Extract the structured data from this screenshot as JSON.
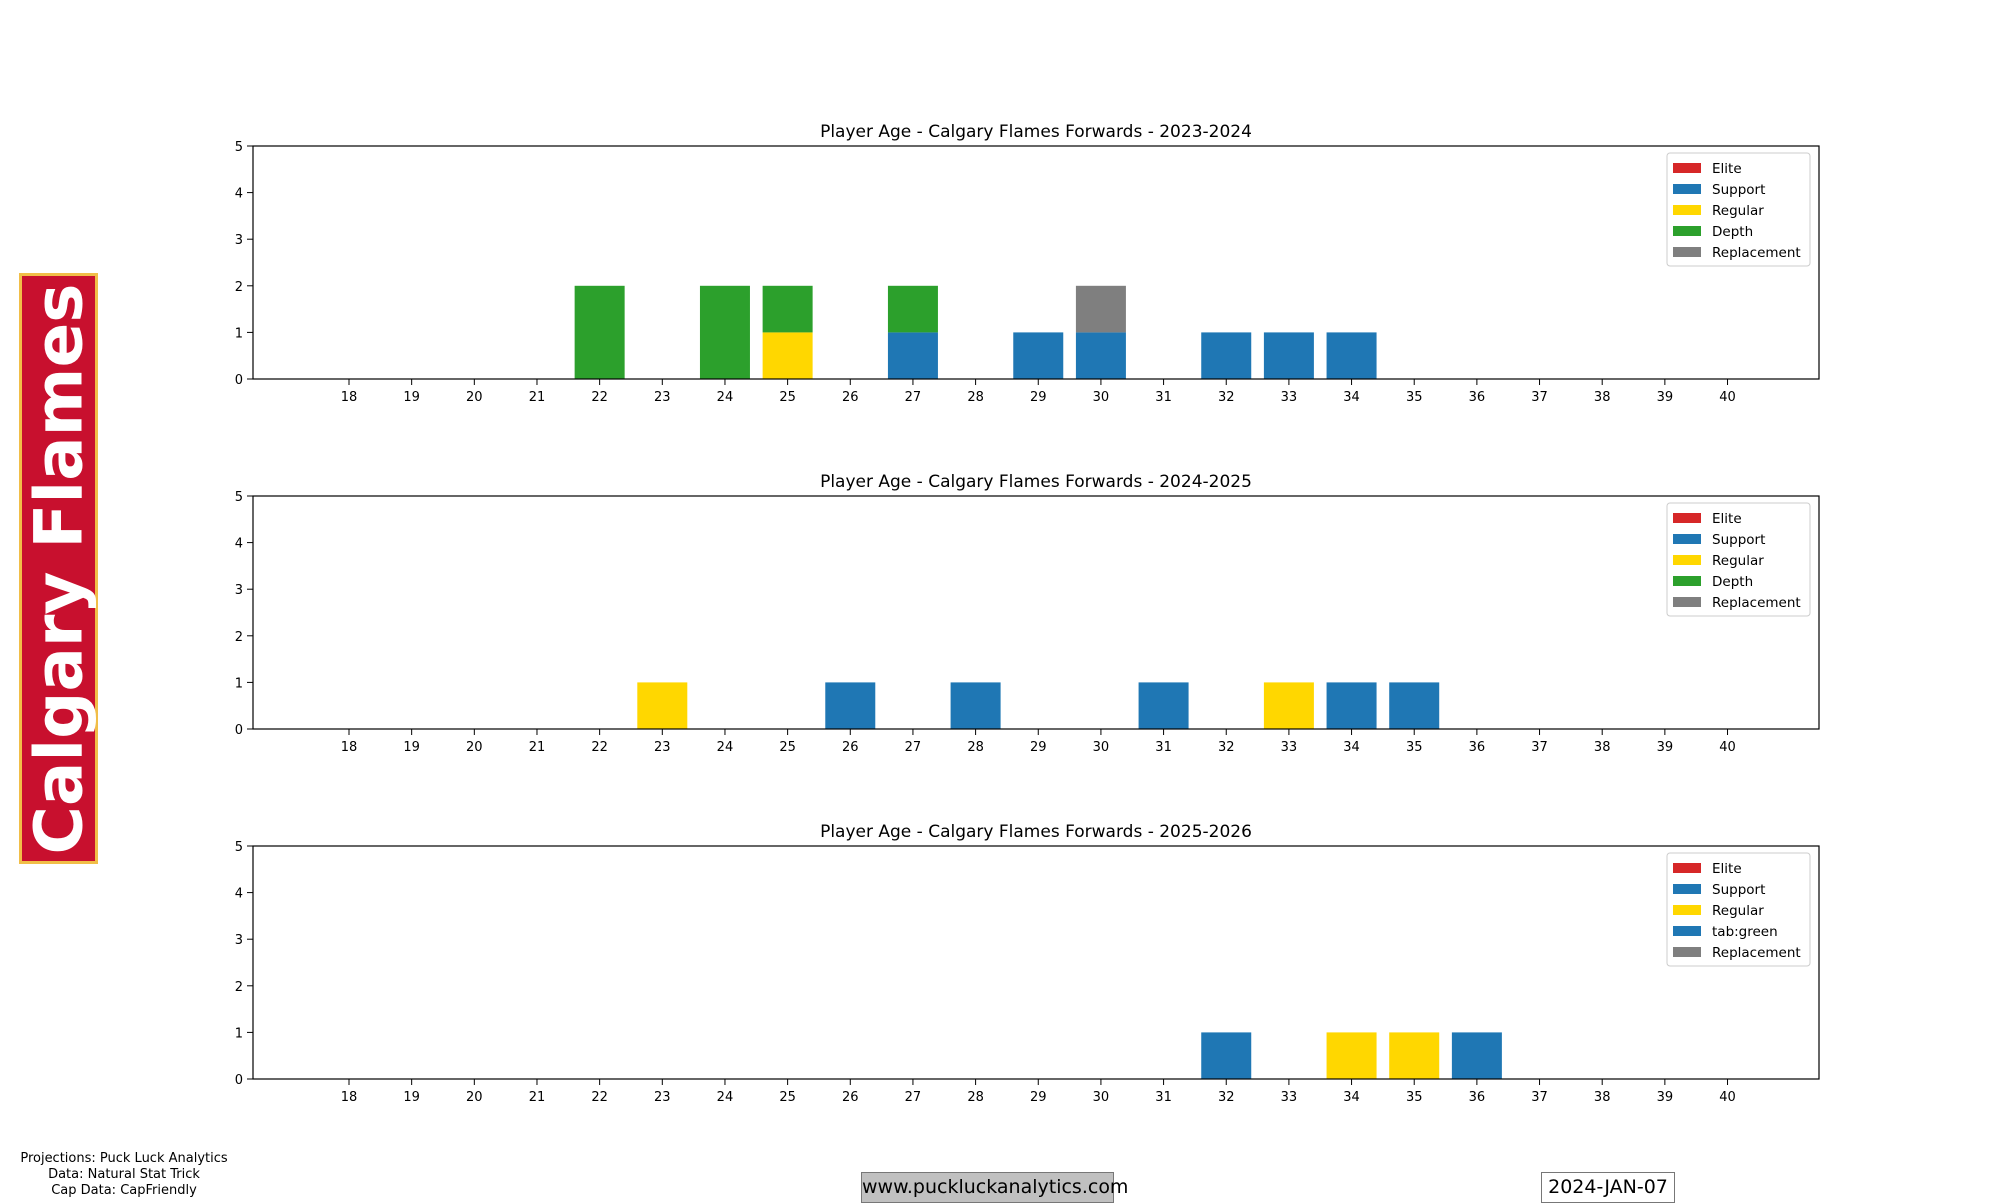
{
  "team_label": "Calgary Flames",
  "credits": {
    "line1": "Projections: Puck Luck Analytics",
    "line2": "Data: Natural Stat Trick",
    "line3": "Cap Data: CapFriendly"
  },
  "website": "www.puckluckanalytics.com",
  "date": "2024-JAN-07",
  "colors": {
    "Elite": "#d62728",
    "Support": "#1f77b4",
    "Regular": "#ffd700",
    "Depth": "#2ca02c",
    "Replacement": "#7f7f7f",
    "tab:green": "#1f77b4"
  },
  "chart_data": [
    {
      "type": "bar",
      "stacked": true,
      "title": "Player Age - Calgary Flames Forwards - 2023-2024",
      "categories": [
        "18",
        "19",
        "20",
        "21",
        "22",
        "23",
        "24",
        "25",
        "26",
        "27",
        "28",
        "29",
        "30",
        "31",
        "32",
        "33",
        "34",
        "35",
        "36",
        "37",
        "38",
        "39",
        "40"
      ],
      "legend": [
        "Elite",
        "Support",
        "Regular",
        "Depth",
        "Replacement"
      ],
      "legend_position": "top-right",
      "ylim": [
        0,
        5
      ],
      "yticks": [
        0,
        1,
        2,
        3,
        4,
        5
      ],
      "series": [
        {
          "name": "Elite",
          "values": [
            0,
            0,
            0,
            0,
            0,
            0,
            0,
            0,
            0,
            0,
            0,
            0,
            0,
            0,
            0,
            0,
            0,
            0,
            0,
            0,
            0,
            0,
            0
          ]
        },
        {
          "name": "Support",
          "values": [
            0,
            0,
            0,
            0,
            0,
            0,
            0,
            0,
            0,
            1,
            0,
            1,
            1,
            0,
            1,
            1,
            1,
            0,
            0,
            0,
            0,
            0,
            0
          ]
        },
        {
          "name": "Regular",
          "values": [
            0,
            0,
            0,
            0,
            0,
            0,
            0,
            1,
            0,
            0,
            0,
            0,
            0,
            0,
            0,
            0,
            0,
            0,
            0,
            0,
            0,
            0,
            0
          ]
        },
        {
          "name": "Depth",
          "values": [
            0,
            0,
            0,
            0,
            2,
            0,
            2,
            1,
            0,
            1,
            0,
            0,
            0,
            0,
            0,
            0,
            0,
            0,
            0,
            0,
            0,
            0,
            0
          ]
        },
        {
          "name": "Replacement",
          "values": [
            0,
            0,
            0,
            0,
            0,
            0,
            0,
            0,
            0,
            0,
            0,
            0,
            1,
            0,
            0,
            0,
            0,
            0,
            0,
            0,
            0,
            0,
            0
          ]
        }
      ]
    },
    {
      "type": "bar",
      "stacked": true,
      "title": "Player Age - Calgary Flames Forwards - 2024-2025",
      "categories": [
        "18",
        "19",
        "20",
        "21",
        "22",
        "23",
        "24",
        "25",
        "26",
        "27",
        "28",
        "29",
        "30",
        "31",
        "32",
        "33",
        "34",
        "35",
        "36",
        "37",
        "38",
        "39",
        "40"
      ],
      "legend": [
        "Elite",
        "Support",
        "Regular",
        "Depth",
        "Replacement"
      ],
      "legend_position": "top-right",
      "ylim": [
        0,
        5
      ],
      "yticks": [
        0,
        1,
        2,
        3,
        4,
        5
      ],
      "series": [
        {
          "name": "Elite",
          "values": [
            0,
            0,
            0,
            0,
            0,
            0,
            0,
            0,
            0,
            0,
            0,
            0,
            0,
            0,
            0,
            0,
            0,
            0,
            0,
            0,
            0,
            0,
            0
          ]
        },
        {
          "name": "Support",
          "values": [
            0,
            0,
            0,
            0,
            0,
            0,
            0,
            0,
            1,
            0,
            1,
            0,
            0,
            1,
            0,
            0,
            1,
            1,
            0,
            0,
            0,
            0,
            0
          ]
        },
        {
          "name": "Regular",
          "values": [
            0,
            0,
            0,
            0,
            0,
            1,
            0,
            0,
            0,
            0,
            0,
            0,
            0,
            0,
            0,
            1,
            0,
            0,
            0,
            0,
            0,
            0,
            0
          ]
        },
        {
          "name": "Depth",
          "values": [
            0,
            0,
            0,
            0,
            0,
            0,
            0,
            0,
            0,
            0,
            0,
            0,
            0,
            0,
            0,
            0,
            0,
            0,
            0,
            0,
            0,
            0,
            0
          ]
        },
        {
          "name": "Replacement",
          "values": [
            0,
            0,
            0,
            0,
            0,
            0,
            0,
            0,
            0,
            0,
            0,
            0,
            0,
            0,
            0,
            0,
            0,
            0,
            0,
            0,
            0,
            0,
            0
          ]
        }
      ]
    },
    {
      "type": "bar",
      "stacked": true,
      "title": "Player Age - Calgary Flames Forwards - 2025-2026",
      "categories": [
        "18",
        "19",
        "20",
        "21",
        "22",
        "23",
        "24",
        "25",
        "26",
        "27",
        "28",
        "29",
        "30",
        "31",
        "32",
        "33",
        "34",
        "35",
        "36",
        "37",
        "38",
        "39",
        "40"
      ],
      "legend": [
        "Elite",
        "Support",
        "Regular",
        "tab:green",
        "Replacement"
      ],
      "legend_position": "top-right",
      "ylim": [
        0,
        5
      ],
      "yticks": [
        0,
        1,
        2,
        3,
        4,
        5
      ],
      "series": [
        {
          "name": "Elite",
          "values": [
            0,
            0,
            0,
            0,
            0,
            0,
            0,
            0,
            0,
            0,
            0,
            0,
            0,
            0,
            0,
            0,
            0,
            0,
            0,
            0,
            0,
            0,
            0
          ]
        },
        {
          "name": "Support",
          "values": [
            0,
            0,
            0,
            0,
            0,
            0,
            0,
            0,
            0,
            0,
            0,
            0,
            0,
            0,
            1,
            0,
            0,
            0,
            1,
            0,
            0,
            0,
            0
          ]
        },
        {
          "name": "Regular",
          "values": [
            0,
            0,
            0,
            0,
            0,
            0,
            0,
            0,
            0,
            0,
            0,
            0,
            0,
            0,
            0,
            0,
            1,
            1,
            0,
            0,
            0,
            0,
            0
          ]
        },
        {
          "name": "tab:green",
          "values": [
            0,
            0,
            0,
            0,
            0,
            0,
            0,
            0,
            0,
            0,
            0,
            0,
            0,
            0,
            0,
            0,
            0,
            0,
            0,
            0,
            0,
            0,
            0
          ]
        },
        {
          "name": "Replacement",
          "values": [
            0,
            0,
            0,
            0,
            0,
            0,
            0,
            0,
            0,
            0,
            0,
            0,
            0,
            0,
            0,
            0,
            0,
            0,
            0,
            0,
            0,
            0,
            0
          ]
        }
      ]
    }
  ]
}
